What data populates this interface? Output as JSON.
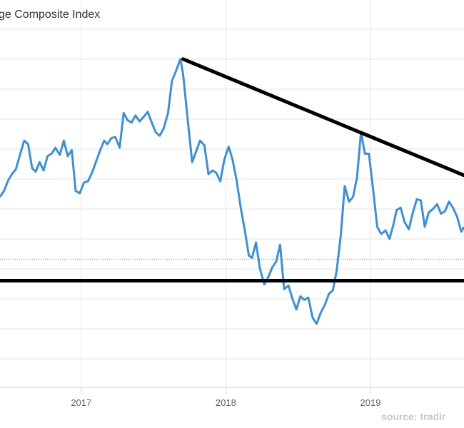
{
  "chart_data": {
    "type": "line",
    "title": "ge Composite Index",
    "source": "source: tradir",
    "x_ticks": [
      "2017",
      "2018",
      "2019"
    ],
    "xlim": [
      "2016-06-10",
      "2019-08-25"
    ],
    "ylim": [
      0,
      600
    ],
    "grid": true,
    "colors": {
      "line": "#3f8fd2",
      "trendline": "#000000",
      "reference": "#3f8fd2",
      "grid": "#e6e6e6",
      "axis": "#ccd6eb"
    },
    "series": [
      {
        "x": [
          "2016-06-10",
          "2016-06-20",
          "2016-07-01",
          "2016-07-10",
          "2016-07-20",
          "2016-08-01",
          "2016-08-10",
          "2016-08-20",
          "2016-08-30",
          "2016-09-08",
          "2016-09-18",
          "2016-09-28",
          "2016-10-08",
          "2016-10-18",
          "2016-10-28",
          "2016-11-08",
          "2016-11-18",
          "2016-11-28",
          "2016-12-08",
          "2016-12-18",
          "2016-12-28",
          "2017-01-08",
          "2017-01-18",
          "2017-01-28",
          "2017-02-08",
          "2017-02-18",
          "2017-02-28",
          "2017-03-08",
          "2017-03-18",
          "2017-03-28",
          "2017-04-08",
          "2017-04-18",
          "2017-04-28",
          "2017-05-08",
          "2017-05-18",
          "2017-05-28",
          "2017-06-08",
          "2017-06-18",
          "2017-06-28",
          "2017-07-08",
          "2017-07-18",
          "2017-07-28",
          "2017-08-08",
          "2017-08-18",
          "2017-08-28",
          "2017-09-08",
          "2017-09-15",
          "2017-09-28",
          "2017-10-08",
          "2017-10-18",
          "2017-10-28",
          "2017-11-08",
          "2017-11-18",
          "2017-11-28",
          "2017-12-08",
          "2017-12-18",
          "2017-12-28",
          "2018-01-08",
          "2018-01-18",
          "2018-01-28",
          "2018-02-08",
          "2018-02-18",
          "2018-02-28",
          "2018-03-08",
          "2018-03-18",
          "2018-03-28",
          "2018-04-08",
          "2018-04-18",
          "2018-04-28",
          "2018-05-08",
          "2018-05-18",
          "2018-05-28",
          "2018-06-08",
          "2018-06-18",
          "2018-06-28",
          "2018-07-08",
          "2018-07-18",
          "2018-07-28",
          "2018-08-08",
          "2018-08-18",
          "2018-08-28",
          "2018-09-08",
          "2018-09-18",
          "2018-09-28",
          "2018-10-08",
          "2018-10-18",
          "2018-10-28",
          "2018-11-08",
          "2018-11-18",
          "2018-11-28",
          "2018-12-08",
          "2018-12-18",
          "2018-12-28",
          "2019-01-08",
          "2019-01-18",
          "2019-01-28",
          "2019-02-08",
          "2019-02-18",
          "2019-02-28",
          "2019-03-08",
          "2019-03-18",
          "2019-03-28",
          "2019-04-08",
          "2019-04-18",
          "2019-04-28",
          "2019-05-08",
          "2019-05-18",
          "2019-05-28",
          "2019-06-08",
          "2019-06-18",
          "2019-06-28",
          "2019-07-08",
          "2019-07-18",
          "2019-07-28",
          "2019-08-08",
          "2019-08-18",
          "2019-08-25"
        ],
        "y": [
          318,
          328,
          346,
          356,
          364,
          392,
          412,
          406,
          366,
          360,
          376,
          362,
          386,
          390,
          400,
          388,
          412,
          386,
          396,
          328,
          324,
          342,
          344,
          358,
          378,
          396,
          412,
          406,
          416,
          418,
          400,
          458,
          446,
          442,
          454,
          444,
          452,
          460,
          442,
          426,
          420,
          432,
          458,
          512,
          528,
          548,
          524,
          438,
          376,
          394,
          412,
          404,
          356,
          362,
          358,
          344,
          380,
          402,
          380,
          346,
          298,
          262,
          220,
          216,
          242,
          198,
          172,
          184,
          200,
          210,
          238,
          164,
          170,
          148,
          130,
          152,
          146,
          150,
          116,
          106,
          124,
          138,
          156,
          162,
          196,
          254,
          336,
          310,
          318,
          350,
          426,
          390,
          390,
          328,
          268,
          256,
          262,
          248,
          272,
          296,
          300,
          276,
          264,
          292,
          314,
          312,
          268,
          292,
          298,
          306,
          290,
          294,
          310,
          300,
          284,
          260,
          268
        ]
      }
    ],
    "annotations": {
      "upper_trendline": {
        "x": [
          "2017-09-15",
          "2019-08-25"
        ],
        "y": [
          548,
          354
        ]
      },
      "lower_trendline": {
        "x": [
          "2016-06-10",
          "2019-08-25"
        ],
        "y": [
          178,
          178
        ]
      },
      "reference_line": {
        "y": 214
      }
    }
  }
}
